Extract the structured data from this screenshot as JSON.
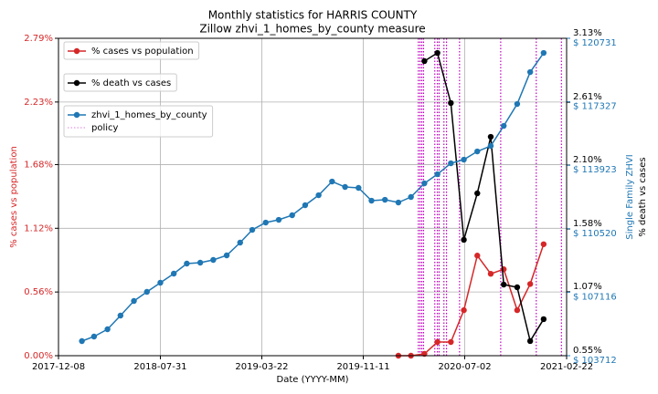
{
  "chart_data": {
    "type": "line",
    "title": "Monthly statistics for HARRIS COUNTY",
    "subtitle": "Zillow zhvi_1_homes_by_county measure",
    "xlabel": "Date (YYYY-MM)",
    "ylabel": "% cases vs population",
    "y2label": "% death vs cases",
    "y3label": "Single Family ZHVI",
    "xlim": [
      "2017-12-08",
      "2021-02-22"
    ],
    "xticks": [
      "2017-12-08",
      "2018-07-31",
      "2019-03-22",
      "2019-11-11",
      "2020-07-02",
      "2021-02-22"
    ],
    "ylim": [
      0,
      2.79
    ],
    "yticks": [
      {
        "value": 0,
        "label": "0.00%"
      },
      {
        "value": 0.56,
        "label": "0.56%"
      },
      {
        "value": 1.12,
        "label": "1.12%"
      },
      {
        "value": 1.68,
        "label": "1.68%"
      },
      {
        "value": 2.23,
        "label": "2.23%"
      },
      {
        "value": 2.79,
        "label": "2.79%"
      }
    ],
    "y2lim": [
      0.55,
      3.13
    ],
    "y2ticks": [
      {
        "value": 0.55,
        "label": "0.55%"
      },
      {
        "value": 1.07,
        "label": "1.07%"
      },
      {
        "value": 1.58,
        "label": "1.58%"
      },
      {
        "value": 2.1,
        "label": "2.10%"
      },
      {
        "value": 2.61,
        "label": "2.61%"
      },
      {
        "value": 3.13,
        "label": "3.13%"
      }
    ],
    "y3lim": [
      103712,
      120731
    ],
    "y3ticks": [
      {
        "value": 103712,
        "label": "$ 103712"
      },
      {
        "value": 107116,
        "label": "$ 107116"
      },
      {
        "value": 110520,
        "label": "$ 110520"
      },
      {
        "value": 113923,
        "label": "$ 113923"
      },
      {
        "value": 117327,
        "label": "$ 117327"
      },
      {
        "value": 120731,
        "label": "$ 120731"
      }
    ],
    "grid": true,
    "series": [
      {
        "name": "% cases vs population",
        "color": "#d62728",
        "axis": "y",
        "x": [
          "2020-01-31",
          "2020-02-29",
          "2020-03-31",
          "2020-04-30",
          "2020-05-31",
          "2020-06-30",
          "2020-07-31",
          "2020-08-31",
          "2020-09-30",
          "2020-10-31",
          "2020-11-30",
          "2020-12-31"
        ],
        "values": [
          0,
          0,
          0.016,
          0.12,
          0.12,
          0.4,
          0.88,
          0.72,
          0.76,
          0.4,
          0.63,
          0.98
        ]
      },
      {
        "name": "% death vs cases",
        "color": "#000000",
        "axis": "y2",
        "x": [
          "2020-03-31",
          "2020-04-30",
          "2020-05-31",
          "2020-06-30",
          "2020-07-31",
          "2020-08-31",
          "2020-09-30",
          "2020-10-31",
          "2020-11-30",
          "2020-12-31"
        ],
        "values": [
          2.945,
          3.011,
          2.604,
          1.492,
          1.87,
          2.329,
          1.128,
          1.106,
          0.669,
          0.847
        ]
      },
      {
        "name": "zhvi_1_homes_by_county",
        "color": "#1f77b4",
        "axis": "y3",
        "x": [
          "2018-01-31",
          "2018-02-28",
          "2018-03-31",
          "2018-04-30",
          "2018-05-31",
          "2018-06-30",
          "2018-07-31",
          "2018-08-31",
          "2018-09-30",
          "2018-10-31",
          "2018-11-30",
          "2018-12-31",
          "2019-01-31",
          "2019-02-28",
          "2019-03-31",
          "2019-04-30",
          "2019-05-31",
          "2019-06-30",
          "2019-07-31",
          "2019-08-31",
          "2019-09-30",
          "2019-10-31",
          "2019-11-30",
          "2019-12-31",
          "2020-01-31",
          "2020-02-29",
          "2020-03-31",
          "2020-04-30",
          "2020-05-31",
          "2020-06-30",
          "2020-07-31",
          "2020-08-31",
          "2020-09-30",
          "2020-10-31",
          "2020-11-30",
          "2020-12-31"
        ],
        "values": [
          104494,
          104739,
          105130,
          105864,
          106646,
          107135,
          107624,
          108113,
          108651,
          108700,
          108847,
          109091,
          109776,
          110460,
          110851,
          110998,
          111243,
          111781,
          112318,
          113052,
          112759,
          112710,
          112025,
          112074,
          111927,
          112221,
          112954,
          113443,
          114030,
          114226,
          114666,
          114959,
          116035,
          117208,
          118920,
          119947
        ]
      }
    ],
    "policy": {
      "name": "policy",
      "color": "#bf00bf",
      "dates": [
        "2020-03-17",
        "2020-03-21",
        "2020-03-25",
        "2020-03-29",
        "2020-04-24",
        "2020-04-30",
        "2020-05-04",
        "2020-05-15",
        "2020-05-21",
        "2020-06-20",
        "2020-09-23",
        "2020-12-14",
        "2021-02-10"
      ]
    }
  }
}
